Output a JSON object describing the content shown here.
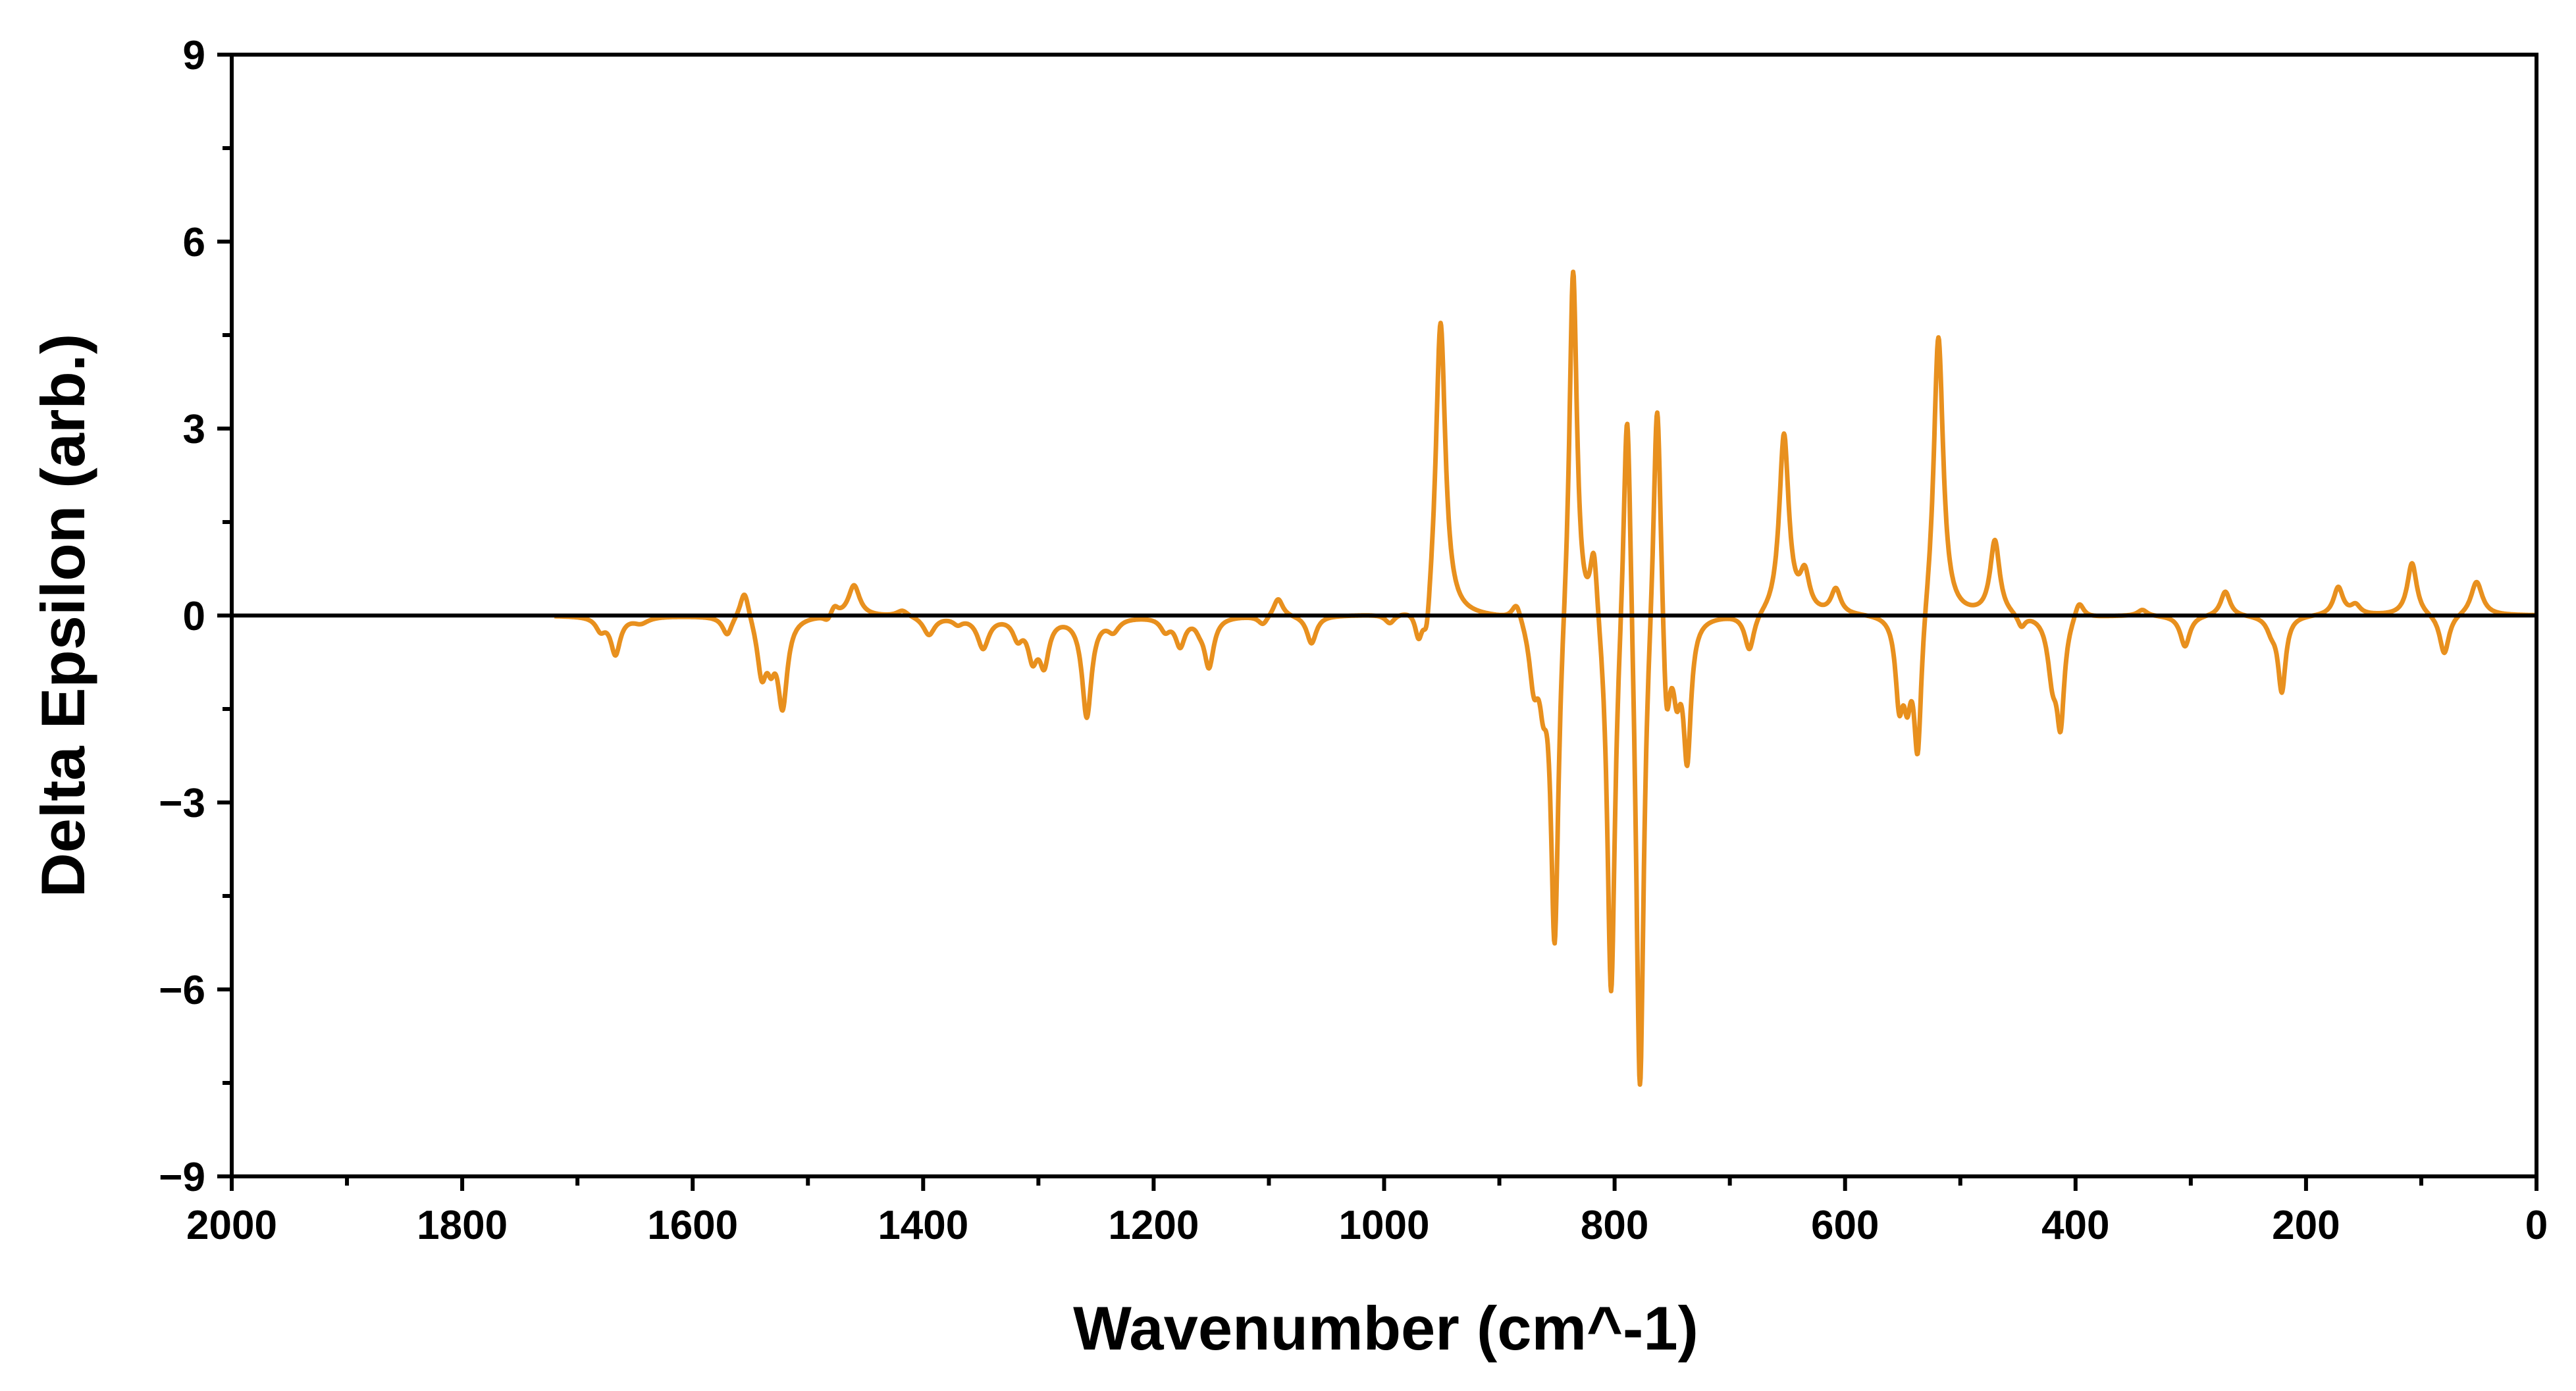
{
  "chart_data": {
    "type": "line",
    "xlabel": "Wavenumber (cm^-1)",
    "ylabel": "Delta Epsilon (arb.)",
    "xlim": [
      2000,
      0
    ],
    "ylim": [
      -9,
      9
    ],
    "x_reversed": true,
    "x_ticks": [
      2000,
      1800,
      1600,
      1400,
      1200,
      1000,
      800,
      600,
      400,
      200,
      0
    ],
    "x_tick_labels": [
      "2000",
      "1800",
      "1600",
      "1400",
      "1200",
      "1000",
      "800",
      "600",
      "400",
      "200",
      "0"
    ],
    "y_ticks": [
      -9,
      -6,
      -3,
      0,
      3,
      6,
      9
    ],
    "y_tick_labels": [
      "−9",
      "−6",
      "−3",
      "0",
      "3",
      "6",
      "9"
    ],
    "zero_line": true,
    "grid": false,
    "series": [
      {
        "color": "#E8901E",
        "peaks": [
          {
            "x": 1680,
            "y": -0.2,
            "w": 5
          },
          {
            "x": 1667,
            "y": -0.6,
            "w": 5
          },
          {
            "x": 1645,
            "y": -0.1,
            "w": 8
          },
          {
            "x": 1570,
            "y": -0.3,
            "w": 5
          },
          {
            "x": 1555,
            "y": 0.5,
            "w": 5
          },
          {
            "x": 1540,
            "y": -0.9,
            "w": 5
          },
          {
            "x": 1532,
            "y": -0.5,
            "w": 4
          },
          {
            "x": 1522,
            "y": -1.4,
            "w": 5
          },
          {
            "x": 1483,
            "y": -0.1,
            "w": 4
          },
          {
            "x": 1477,
            "y": 0.15,
            "w": 4
          },
          {
            "x": 1460,
            "y": 0.5,
            "w": 6
          },
          {
            "x": 1418,
            "y": 0.1,
            "w": 6
          },
          {
            "x": 1395,
            "y": -0.3,
            "w": 6
          },
          {
            "x": 1370,
            "y": -0.1,
            "w": 5
          },
          {
            "x": 1348,
            "y": -0.5,
            "w": 6
          },
          {
            "x": 1318,
            "y": -0.3,
            "w": 5
          },
          {
            "x": 1305,
            "y": -0.6,
            "w": 5
          },
          {
            "x": 1295,
            "y": -0.7,
            "w": 5
          },
          {
            "x": 1258,
            "y": -1.6,
            "w": 5
          },
          {
            "x": 1235,
            "y": -0.2,
            "w": 6
          },
          {
            "x": 1190,
            "y": -0.2,
            "w": 5
          },
          {
            "x": 1177,
            "y": -0.45,
            "w": 5
          },
          {
            "x": 1160,
            "y": -0.1,
            "w": 4
          },
          {
            "x": 1152,
            "y": -0.8,
            "w": 5
          },
          {
            "x": 1105,
            "y": -0.15,
            "w": 5
          },
          {
            "x": 1092,
            "y": 0.3,
            "w": 5
          },
          {
            "x": 1063,
            "y": -0.45,
            "w": 5
          },
          {
            "x": 995,
            "y": -0.15,
            "w": 5
          },
          {
            "x": 970,
            "y": -0.5,
            "w": 4
          },
          {
            "x": 963,
            "y": -0.7,
            "w": 4
          },
          {
            "x": 951,
            "y": 4.8,
            "w": 5
          },
          {
            "x": 885,
            "y": 0.3,
            "w": 5
          },
          {
            "x": 870,
            "y": -1.0,
            "w": 5
          },
          {
            "x": 862,
            "y": -0.9,
            "w": 4
          },
          {
            "x": 852,
            "y": -5.4,
            "w": 4
          },
          {
            "x": 836,
            "y": 5.9,
            "w": 4
          },
          {
            "x": 818,
            "y": 1.2,
            "w": 4
          },
          {
            "x": 803,
            "y": -6.3,
            "w": 4
          },
          {
            "x": 789,
            "y": 4.4,
            "w": 4
          },
          {
            "x": 778,
            "y": -8.1,
            "w": 4
          },
          {
            "x": 763,
            "y": 4.2,
            "w": 4
          },
          {
            "x": 755,
            "y": -1.8,
            "w": 4
          },
          {
            "x": 746,
            "y": -1.0,
            "w": 4
          },
          {
            "x": 737,
            "y": -2.2,
            "w": 4
          },
          {
            "x": 683,
            "y": -0.6,
            "w": 5
          },
          {
            "x": 653,
            "y": 2.9,
            "w": 5
          },
          {
            "x": 635,
            "y": 0.6,
            "w": 5
          },
          {
            "x": 608,
            "y": 0.4,
            "w": 5
          },
          {
            "x": 553,
            "y": -1.3,
            "w": 4
          },
          {
            "x": 546,
            "y": -1.1,
            "w": 4
          },
          {
            "x": 537,
            "y": -2.3,
            "w": 4
          },
          {
            "x": 519,
            "y": 4.6,
            "w": 5
          },
          {
            "x": 470,
            "y": 1.2,
            "w": 5
          },
          {
            "x": 447,
            "y": -0.2,
            "w": 4
          },
          {
            "x": 420,
            "y": -0.9,
            "w": 5
          },
          {
            "x": 413,
            "y": -1.6,
            "w": 4
          },
          {
            "x": 397,
            "y": 0.3,
            "w": 5
          },
          {
            "x": 342,
            "y": 0.1,
            "w": 5
          },
          {
            "x": 305,
            "y": -0.5,
            "w": 5
          },
          {
            "x": 270,
            "y": 0.4,
            "w": 5
          },
          {
            "x": 230,
            "y": -0.2,
            "w": 5
          },
          {
            "x": 221,
            "y": -1.2,
            "w": 4
          },
          {
            "x": 172,
            "y": 0.45,
            "w": 5
          },
          {
            "x": 157,
            "y": 0.15,
            "w": 5
          },
          {
            "x": 108,
            "y": 0.85,
            "w": 5
          },
          {
            "x": 80,
            "y": -0.65,
            "w": 5
          },
          {
            "x": 52,
            "y": 0.55,
            "w": 6
          }
        ]
      }
    ]
  }
}
